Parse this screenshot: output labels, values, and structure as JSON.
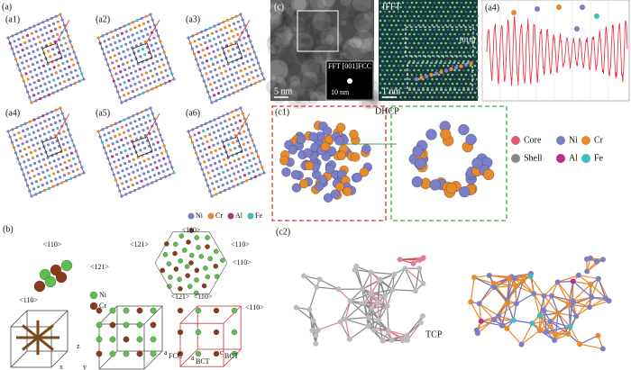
{
  "panel_a": {
    "label": "(a)",
    "subpanels": [
      "(a1)",
      "(a2)",
      "(a3)",
      "(a4)",
      "(a5)",
      "(a6)"
    ],
    "legend": [
      "Ni",
      "Cr",
      "Al",
      "Fe"
    ]
  },
  "panel_b": {
    "label": "(b)",
    "direction_labels": [
      "<110>",
      "<121>",
      "<110>",
      "<110>",
      "<121>",
      "<110>",
      "<110>",
      "<121>",
      "<110>",
      "<110>"
    ],
    "legend": [
      "Ni",
      "Cr"
    ],
    "axis_labels": [
      "x",
      "y",
      "z"
    ],
    "lattice_labels": [
      {
        "symbol": "a",
        "sub": "FCC"
      },
      {
        "symbol": "a",
        "sub": "BCT"
      },
      {
        "symbol": "c",
        "sub": "BCT"
      }
    ]
  },
  "panel_c": {
    "label": "(c)",
    "tem": {
      "scale_bar": "5 nm",
      "fft": "FFT [001]FCC",
      "fft_scale_bar": "10 nm"
    },
    "ifft": {
      "title": "IFFT",
      "scale_bar": "1 nm",
      "direction": "[010]"
    },
    "profile": {
      "label": "(a4)"
    },
    "c1": {
      "label": "(c1)",
      "structure": "DHCP",
      "legend": [
        "Core",
        "Shell",
        "Ni",
        "Cr",
        "Al",
        "Fe"
      ]
    },
    "c2": {
      "label": "(c2)",
      "structure": "TCP"
    }
  }
}
